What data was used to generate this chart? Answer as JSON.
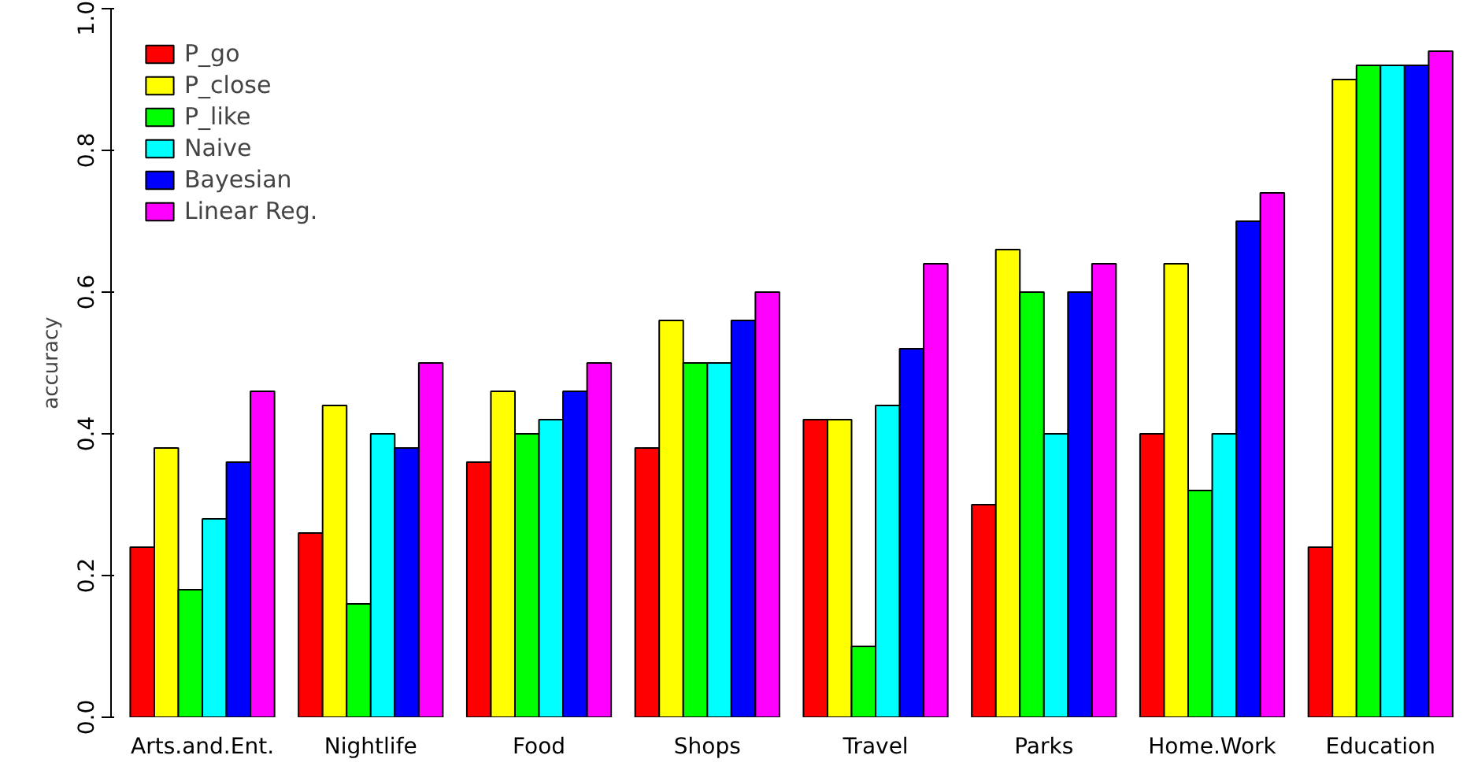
{
  "chart_data": {
    "type": "bar",
    "ylabel": "accuracy",
    "categories": [
      "Arts.and.Ent.",
      "Nightlife",
      "Food",
      "Shops",
      "Travel",
      "Parks",
      "Home.Work",
      "Education"
    ],
    "series": [
      {
        "name": "P_go",
        "color": "#ff0000",
        "values": [
          0.24,
          0.26,
          0.36,
          0.38,
          0.42,
          0.3,
          0.4,
          0.24
        ]
      },
      {
        "name": "P_close",
        "color": "#ffff00",
        "values": [
          0.38,
          0.44,
          0.46,
          0.56,
          0.42,
          0.66,
          0.64,
          0.9
        ]
      },
      {
        "name": "P_like",
        "color": "#00ff00",
        "values": [
          0.18,
          0.16,
          0.4,
          0.5,
          0.1,
          0.6,
          0.32,
          0.92
        ]
      },
      {
        "name": "Naive",
        "color": "#00ffff",
        "values": [
          0.28,
          0.4,
          0.42,
          0.5,
          0.44,
          0.4,
          0.4,
          0.92
        ]
      },
      {
        "name": "Bayesian",
        "color": "#0000ff",
        "values": [
          0.36,
          0.38,
          0.46,
          0.56,
          0.52,
          0.6,
          0.7,
          0.92
        ]
      },
      {
        "name": "Linear Reg.",
        "color": "#ff00ff",
        "values": [
          0.46,
          0.5,
          0.5,
          0.6,
          0.64,
          0.64,
          0.74,
          0.94
        ]
      }
    ],
    "ylim": [
      0,
      1
    ],
    "yticks": [
      {
        "value": 0,
        "label": "0.0"
      },
      0.2,
      0.4,
      0.6,
      0.8,
      {
        "value": 1,
        "label": "1.0"
      }
    ],
    "grid": false,
    "legend": "top left"
  }
}
